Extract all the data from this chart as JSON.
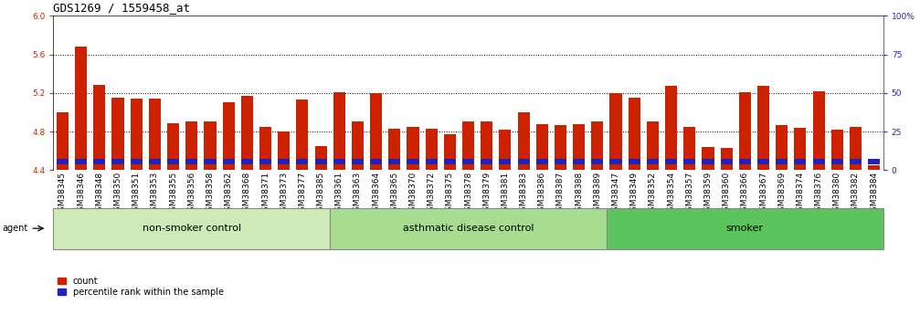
{
  "title": "GDS1269 / 1559458_at",
  "samples": [
    "GSM38345",
    "GSM38346",
    "GSM38348",
    "GSM38350",
    "GSM38351",
    "GSM38353",
    "GSM38355",
    "GSM38356",
    "GSM38358",
    "GSM38362",
    "GSM38368",
    "GSM38371",
    "GSM38373",
    "GSM38377",
    "GSM38385",
    "GSM38361",
    "GSM38363",
    "GSM38364",
    "GSM38365",
    "GSM38370",
    "GSM38372",
    "GSM38375",
    "GSM38378",
    "GSM38379",
    "GSM38381",
    "GSM38383",
    "GSM38386",
    "GSM38387",
    "GSM38388",
    "GSM38389",
    "GSM38347",
    "GSM38349",
    "GSM38352",
    "GSM38354",
    "GSM38357",
    "GSM38359",
    "GSM38360",
    "GSM38366",
    "GSM38367",
    "GSM38369",
    "GSM38374",
    "GSM38376",
    "GSM38380",
    "GSM38382",
    "GSM38384"
  ],
  "red_values": [
    5.0,
    5.68,
    5.28,
    5.15,
    5.14,
    5.14,
    4.89,
    4.9,
    4.9,
    5.1,
    5.17,
    4.85,
    4.8,
    5.13,
    4.65,
    5.21,
    4.9,
    5.2,
    4.83,
    4.85,
    4.83,
    4.77,
    4.9,
    4.9,
    4.82,
    5.0,
    4.88,
    4.87,
    4.88,
    4.9,
    5.2,
    5.15,
    4.9,
    5.27,
    4.85,
    4.64,
    4.63,
    5.21,
    5.27,
    4.87,
    4.84,
    5.22,
    4.82,
    4.85,
    4.45
  ],
  "blue_bottom": [
    4.46,
    4.46,
    4.46,
    4.46,
    4.46,
    4.46,
    4.46,
    4.46,
    4.46,
    4.46,
    4.46,
    4.46,
    4.46,
    4.46,
    4.46,
    4.46,
    4.46,
    4.46,
    4.46,
    4.46,
    4.46,
    4.46,
    4.46,
    4.46,
    4.46,
    4.46,
    4.46,
    4.46,
    4.46,
    4.46,
    4.46,
    4.46,
    4.46,
    4.46,
    4.46,
    4.46,
    4.46,
    4.46,
    4.46,
    4.46,
    4.46,
    4.46,
    4.46,
    4.46,
    4.46
  ],
  "blue_heights": [
    0.055,
    0.055,
    0.055,
    0.055,
    0.055,
    0.055,
    0.055,
    0.055,
    0.055,
    0.055,
    0.055,
    0.055,
    0.055,
    0.055,
    0.055,
    0.055,
    0.055,
    0.055,
    0.055,
    0.055,
    0.055,
    0.055,
    0.055,
    0.055,
    0.055,
    0.055,
    0.055,
    0.055,
    0.055,
    0.055,
    0.055,
    0.055,
    0.055,
    0.055,
    0.055,
    0.055,
    0.055,
    0.055,
    0.055,
    0.055,
    0.055,
    0.055,
    0.055,
    0.055,
    0.055
  ],
  "groups": [
    {
      "label": "non-smoker control",
      "start": 0,
      "end": 15,
      "color": "#cdeab8"
    },
    {
      "label": "asthmatic disease control",
      "start": 15,
      "end": 30,
      "color": "#a8dc90"
    },
    {
      "label": "smoker",
      "start": 30,
      "end": 45,
      "color": "#5cc45c"
    }
  ],
  "ylim": [
    4.4,
    6.0
  ],
  "yticks": [
    4.4,
    4.8,
    5.2,
    5.6,
    6.0
  ],
  "y2ticks": [
    0,
    25,
    50,
    75,
    100
  ],
  "y2ticklabels": [
    "0",
    "25",
    "50",
    "75",
    "100%"
  ],
  "hlines": [
    4.8,
    5.2,
    5.6
  ],
  "bar_color": "#cc2200",
  "blue_color": "#2222bb",
  "bg_color": "#ffffff",
  "tick_color_left": "#cc2200",
  "tick_color_right": "#2222bb",
  "title_fontsize": 9,
  "tick_fontsize": 6.5,
  "label_fontsize": 7,
  "group_label_fontsize": 8
}
